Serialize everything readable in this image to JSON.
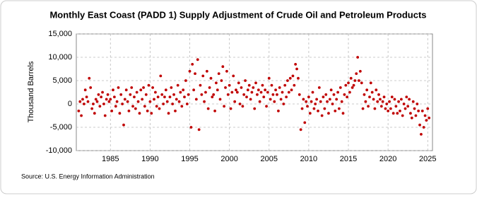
{
  "chart_data": {
    "type": "scatter",
    "title": "Monthly East Coast (PADD 1) Supply Adjustment of Crude Oil and Petroleum Products",
    "y_label": "Thousand Barrels",
    "source": "Source: U.S. Energy Information Administration",
    "color": "#c00000",
    "grid": true,
    "xlim": [
      1980.7,
      2025.6
    ],
    "xticks": [
      1985,
      1990,
      1995,
      2000,
      2005,
      2010,
      2015,
      2020,
      2025
    ],
    "ylim": [
      -10000,
      15000
    ],
    "yticks": [
      {
        "value": -10000,
        "label": "-10,000"
      },
      {
        "value": -5000,
        "label": "-5,000"
      },
      0,
      {
        "value": 5000,
        "label": "5,000"
      },
      {
        "value": 10000,
        "label": "10,000"
      },
      {
        "value": 15000,
        "label": "15,000"
      }
    ],
    "x": [
      1981.0,
      1981.17,
      1981.33,
      1981.5,
      1981.67,
      1981.83,
      1982.0,
      1982.17,
      1982.33,
      1982.5,
      1982.67,
      1982.83,
      1983.0,
      1983.17,
      1983.33,
      1983.5,
      1983.67,
      1983.83,
      1984.0,
      1984.17,
      1984.33,
      1984.5,
      1984.67,
      1984.83,
      1985.0,
      1985.17,
      1985.33,
      1985.5,
      1985.67,
      1985.83,
      1986.0,
      1986.17,
      1986.33,
      1986.5,
      1986.67,
      1986.83,
      1987.0,
      1987.17,
      1987.33,
      1987.5,
      1987.67,
      1987.83,
      1988.0,
      1988.17,
      1988.33,
      1988.5,
      1988.67,
      1988.83,
      1989.0,
      1989.17,
      1989.33,
      1989.5,
      1989.67,
      1989.83,
      1990.0,
      1990.17,
      1990.33,
      1990.5,
      1990.67,
      1990.83,
      1991.0,
      1991.17,
      1991.33,
      1991.5,
      1991.67,
      1991.83,
      1992.0,
      1992.17,
      1992.33,
      1992.5,
      1992.67,
      1992.83,
      1993.0,
      1993.17,
      1993.33,
      1993.5,
      1993.67,
      1993.83,
      1994.0,
      1994.17,
      1994.33,
      1994.5,
      1994.67,
      1994.83,
      1995.0,
      1995.17,
      1995.33,
      1995.5,
      1995.67,
      1995.83,
      1996.0,
      1996.17,
      1996.33,
      1996.5,
      1996.67,
      1996.83,
      1997.0,
      1997.17,
      1997.33,
      1997.5,
      1997.67,
      1997.83,
      1998.0,
      1998.17,
      1998.33,
      1998.5,
      1998.67,
      1998.83,
      1999.0,
      1999.17,
      1999.33,
      1999.5,
      1999.67,
      1999.83,
      2000.0,
      2000.17,
      2000.33,
      2000.5,
      2000.67,
      2000.83,
      2001.0,
      2001.17,
      2001.33,
      2001.5,
      2001.67,
      2001.83,
      2002.0,
      2002.17,
      2002.33,
      2002.5,
      2002.67,
      2002.83,
      2003.0,
      2003.17,
      2003.33,
      2003.5,
      2003.67,
      2003.83,
      2004.0,
      2004.17,
      2004.33,
      2004.5,
      2004.67,
      2004.83,
      2005.0,
      2005.17,
      2005.33,
      2005.5,
      2005.67,
      2005.83,
      2006.0,
      2006.17,
      2006.33,
      2006.5,
      2006.67,
      2006.83,
      2007.0,
      2007.17,
      2007.33,
      2007.5,
      2007.67,
      2007.83,
      2008.0,
      2008.17,
      2008.33,
      2008.5,
      2008.67,
      2008.83,
      2009.0,
      2009.17,
      2009.33,
      2009.5,
      2009.67,
      2009.83,
      2010.0,
      2010.17,
      2010.33,
      2010.5,
      2010.67,
      2010.83,
      2011.0,
      2011.17,
      2011.33,
      2011.5,
      2011.67,
      2011.83,
      2012.0,
      2012.17,
      2012.33,
      2012.5,
      2012.67,
      2012.83,
      2013.0,
      2013.17,
      2013.33,
      2013.5,
      2013.67,
      2013.83,
      2014.0,
      2014.17,
      2014.33,
      2014.5,
      2014.67,
      2014.83,
      2015.0,
      2015.17,
      2015.33,
      2015.5,
      2015.67,
      2015.83,
      2016.0,
      2016.17,
      2016.33,
      2016.5,
      2016.67,
      2016.83,
      2017.0,
      2017.17,
      2017.33,
      2017.5,
      2017.67,
      2017.83,
      2018.0,
      2018.17,
      2018.33,
      2018.5,
      2018.67,
      2018.83,
      2019.0,
      2019.17,
      2019.33,
      2019.5,
      2019.67,
      2019.83,
      2020.0,
      2020.17,
      2020.33,
      2020.5,
      2020.67,
      2020.83,
      2021.0,
      2021.17,
      2021.33,
      2021.5,
      2021.67,
      2021.83,
      2022.0,
      2022.17,
      2022.33,
      2022.5,
      2022.67,
      2022.83,
      2023.0,
      2023.17,
      2023.33,
      2023.5,
      2023.67,
      2023.83,
      2024.0,
      2024.17,
      2024.33,
      2024.5,
      2024.67,
      2024.83,
      2025.0,
      2025.17
    ],
    "values": [
      -1500,
      500,
      -2500,
      1000,
      0,
      3000,
      1500,
      500,
      5500,
      3500,
      -1000,
      0,
      -2000,
      1000,
      500,
      2000,
      -500,
      1500,
      2500,
      0,
      -2500,
      1000,
      2000,
      500,
      1000,
      -1500,
      3000,
      1500,
      -500,
      500,
      3500,
      -2000,
      2000,
      0,
      -4500,
      1000,
      3000,
      500,
      -1500,
      2000,
      3500,
      -500,
      1500,
      -1000,
      2500,
      500,
      -2000,
      3000,
      1000,
      3500,
      -500,
      2000,
      -1500,
      4000,
      500,
      -2000,
      3500,
      1000,
      2500,
      -500,
      1500,
      -1000,
      6000,
      2000,
      0,
      1500,
      3000,
      500,
      -2000,
      1500,
      3500,
      0,
      2000,
      -1500,
      1000,
      4000,
      500,
      2500,
      -500,
      3000,
      1500,
      5000,
      0,
      2000,
      7000,
      -5000,
      8500,
      3000,
      6500,
      1000,
      9500,
      -5500,
      4000,
      2000,
      6000,
      500,
      2500,
      7000,
      -1000,
      3500,
      5500,
      1500,
      2000,
      -1500,
      4500,
      3000,
      6500,
      1000,
      5000,
      8000,
      -500,
      3500,
      7000,
      2000,
      4000,
      -1000,
      2500,
      6000,
      500,
      3000,
      2500,
      4500,
      0,
      3500,
      -500,
      2000,
      5000,
      1500,
      3000,
      4000,
      1000,
      2500,
      3500,
      -1000,
      4500,
      2000,
      3000,
      500,
      2500,
      4000,
      1500,
      3000,
      -500,
      2500,
      5500,
      1000,
      4000,
      2000,
      500,
      3000,
      2000,
      -1500,
      3500,
      1000,
      2500,
      0,
      4000,
      1500,
      5000,
      2500,
      5500,
      3000,
      6000,
      4000,
      8500,
      7500,
      5500,
      2000,
      -5500,
      -1000,
      1000,
      -4000,
      500,
      -500,
      1500,
      -2000,
      500,
      2500,
      -1000,
      0,
      1000,
      -1500,
      3500,
      500,
      -2500,
      1500,
      -1000,
      2000,
      500,
      -2000,
      1000,
      3000,
      0,
      2000,
      -1500,
      1000,
      2500,
      -1000,
      3500,
      500,
      -2000,
      2000,
      4000,
      1500,
      4500,
      2500,
      5500,
      3500,
      4000,
      5000,
      6500,
      10000,
      5000,
      7000,
      4500,
      -1000,
      2000,
      500,
      3000,
      -500,
      1500,
      4500,
      2500,
      1000,
      -1000,
      3000,
      500,
      2000,
      1000,
      -500,
      500,
      1500,
      -1000,
      0,
      -1500,
      500,
      -1000,
      1500,
      -2000,
      1000,
      -500,
      -2000,
      500,
      -1500,
      1000,
      -2500,
      0,
      -1000,
      1500,
      -500,
      1000,
      -2000,
      -3000,
      500,
      -1000,
      -2500,
      0,
      -1500,
      -4500,
      -6500,
      -1500,
      -5000,
      -2500,
      -3500,
      -1000,
      -3000
    ]
  }
}
